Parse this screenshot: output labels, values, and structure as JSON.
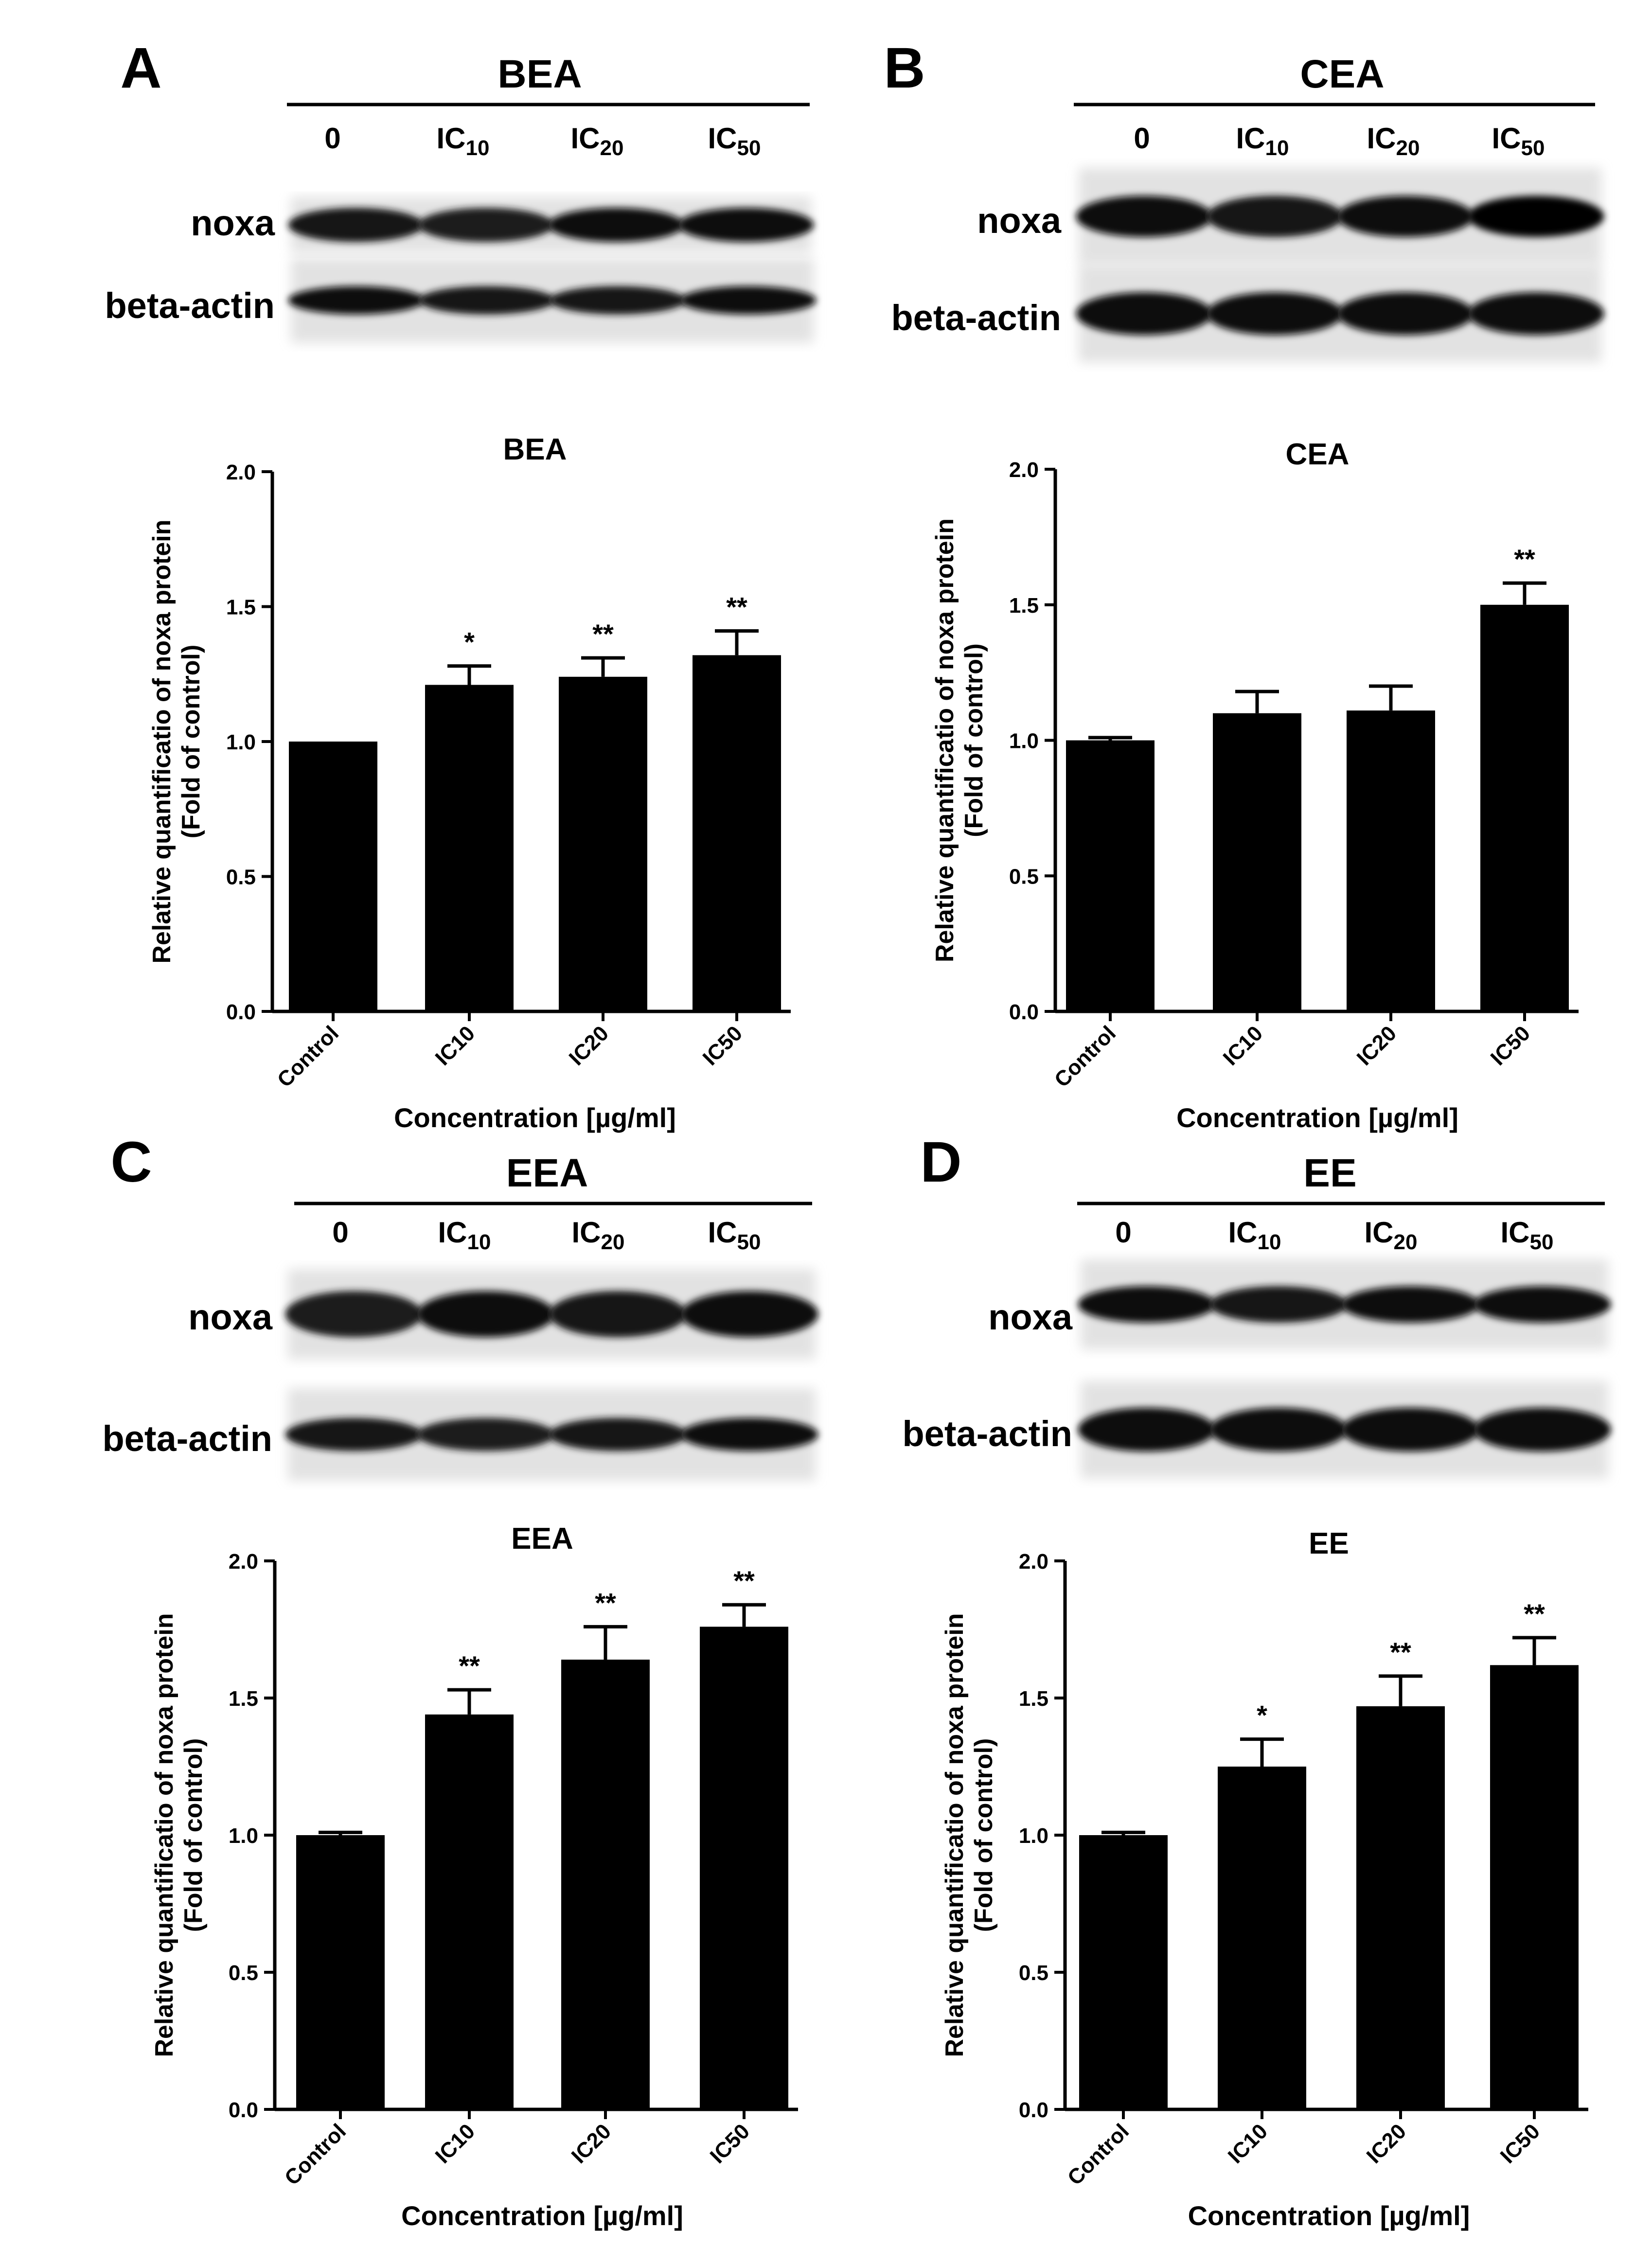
{
  "panels": [
    {
      "letter": "A",
      "blot": {
        "title": "BEA",
        "lanes": [
          {
            "base": "0",
            "sub": ""
          },
          {
            "base": "IC",
            "sub": "10"
          },
          {
            "base": "IC",
            "sub": "20"
          },
          {
            "base": "IC",
            "sub": "50"
          }
        ],
        "rows": [
          "noxa",
          "beta-actin"
        ],
        "band_intensity": {
          "noxa": [
            0.75,
            0.7,
            0.82,
            0.9
          ],
          "beta-actin": [
            0.85,
            0.8,
            0.8,
            0.85
          ]
        }
      }
    },
    {
      "letter": "B",
      "blot": {
        "title": "CEA",
        "lanes": [
          {
            "base": "0",
            "sub": ""
          },
          {
            "base": "IC",
            "sub": "10"
          },
          {
            "base": "IC",
            "sub": "20"
          },
          {
            "base": "IC",
            "sub": "50"
          }
        ],
        "rows": [
          "noxa",
          "beta-actin"
        ],
        "band_intensity": {
          "noxa": [
            0.85,
            0.8,
            0.85,
            0.95
          ],
          "beta-actin": [
            0.9,
            0.85,
            0.85,
            0.9
          ]
        }
      }
    },
    {
      "letter": "C",
      "blot": {
        "title": "EEA",
        "lanes": [
          {
            "base": "0",
            "sub": ""
          },
          {
            "base": "IC",
            "sub": "10"
          },
          {
            "base": "IC",
            "sub": "20"
          },
          {
            "base": "IC",
            "sub": "50"
          }
        ],
        "rows": [
          "noxa",
          "beta-actin"
        ],
        "band_intensity": {
          "noxa": [
            0.7,
            0.85,
            0.8,
            0.85
          ],
          "beta-actin": [
            0.8,
            0.7,
            0.8,
            0.85
          ]
        }
      }
    },
    {
      "letter": "D",
      "blot": {
        "title": "EE",
        "lanes": [
          {
            "base": "0",
            "sub": ""
          },
          {
            "base": "IC",
            "sub": "10"
          },
          {
            "base": "IC",
            "sub": "20"
          },
          {
            "base": "IC",
            "sub": "50"
          }
        ],
        "rows": [
          "noxa",
          "beta-actin"
        ],
        "band_intensity": {
          "noxa": [
            0.85,
            0.8,
            0.9,
            0.85
          ],
          "beta-actin": [
            0.9,
            0.85,
            0.85,
            0.9
          ]
        }
      }
    }
  ],
  "chart_data": [
    {
      "type": "bar",
      "title": "BEA",
      "categories": [
        "Control",
        "IC10",
        "IC20",
        "IC50"
      ],
      "values": [
        1.0,
        1.21,
        1.24,
        1.32
      ],
      "errors": [
        0.0,
        0.07,
        0.07,
        0.09
      ],
      "significance": [
        "",
        "*",
        "**",
        "**"
      ],
      "xlabel": "Concentration [µg/ml]",
      "ylabel": [
        "Relative quantificatio of noxa protein",
        "(Fold of control)"
      ],
      "ylim": [
        0,
        2.0
      ],
      "yticks": [
        "0.0",
        "0.5",
        "1.0",
        "1.5",
        "2.0"
      ],
      "bar_color": "#000000",
      "grid": false
    },
    {
      "type": "bar",
      "title": "CEA",
      "categories": [
        "Control",
        "IC10",
        "IC20",
        "IC50"
      ],
      "values": [
        1.0,
        1.1,
        1.11,
        1.5
      ],
      "errors": [
        0.01,
        0.08,
        0.09,
        0.08
      ],
      "significance": [
        "",
        "",
        "",
        "**"
      ],
      "xlabel": "Concentration [µg/ml]",
      "ylabel": [
        "Relative quantificatio of noxa protein",
        "(Fold of control)"
      ],
      "ylim": [
        0,
        2.0
      ],
      "yticks": [
        "0.0",
        "0.5",
        "1.0",
        "1.5",
        "2.0"
      ],
      "bar_color": "#000000",
      "grid": false
    },
    {
      "type": "bar",
      "title": "EEA",
      "categories": [
        "Control",
        "IC10",
        "IC20",
        "IC50"
      ],
      "values": [
        1.0,
        1.44,
        1.64,
        1.76
      ],
      "errors": [
        0.01,
        0.09,
        0.12,
        0.08
      ],
      "significance": [
        "",
        "**",
        "**",
        "**"
      ],
      "xlabel": "Concentration [µg/ml]",
      "ylabel": [
        "Relative quantificatio of noxa protein",
        "(Fold of control)"
      ],
      "ylim": [
        0,
        2.0
      ],
      "yticks": [
        "0.0",
        "0.5",
        "1.0",
        "1.5",
        "2.0"
      ],
      "bar_color": "#000000",
      "grid": false
    },
    {
      "type": "bar",
      "title": "EE",
      "categories": [
        "Control",
        "IC10",
        "IC20",
        "IC50"
      ],
      "values": [
        1.0,
        1.25,
        1.47,
        1.62
      ],
      "errors": [
        0.01,
        0.1,
        0.11,
        0.1
      ],
      "significance": [
        "",
        "*",
        "**",
        "**"
      ],
      "xlabel": "Concentration [µg/ml]",
      "ylabel": [
        "Relative quantificatio of noxa protein",
        "(Fold of control)"
      ],
      "ylim": [
        0,
        2.0
      ],
      "yticks": [
        "0.0",
        "0.5",
        "1.0",
        "1.5",
        "2.0"
      ],
      "bar_color": "#000000",
      "grid": false
    }
  ]
}
